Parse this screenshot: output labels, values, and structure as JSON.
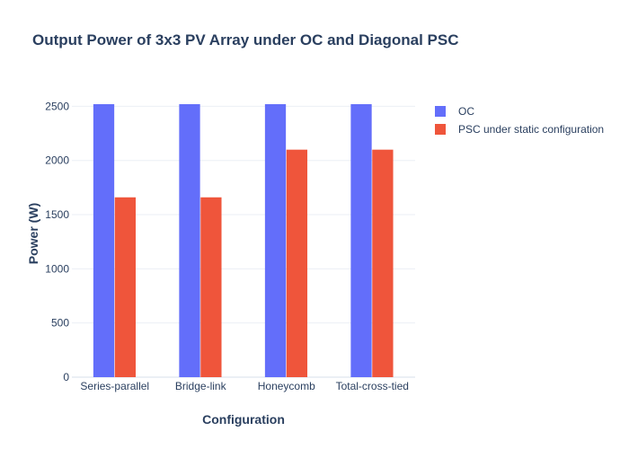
{
  "chart_data": {
    "type": "bar",
    "title": "Output Power of 3x3 PV Array under OC and Diagonal PSC",
    "xlabel": "Configuration",
    "ylabel": "Power (W)",
    "categories": [
      "Series-parallel",
      "Bridge-link",
      "Honeycomb",
      "Total-cross-tied"
    ],
    "series": [
      {
        "name": "OC",
        "color": "#636efa",
        "values": [
          2520,
          2520,
          2520,
          2520
        ]
      },
      {
        "name": "PSC under static configuration",
        "color": "#ef553b",
        "values": [
          1660,
          1660,
          2100,
          2100
        ]
      }
    ],
    "ylim": [
      0,
      2520
    ],
    "yticks": [
      0,
      500,
      1000,
      1500,
      2000,
      2500
    ],
    "grid": true,
    "legend": "top-right"
  }
}
